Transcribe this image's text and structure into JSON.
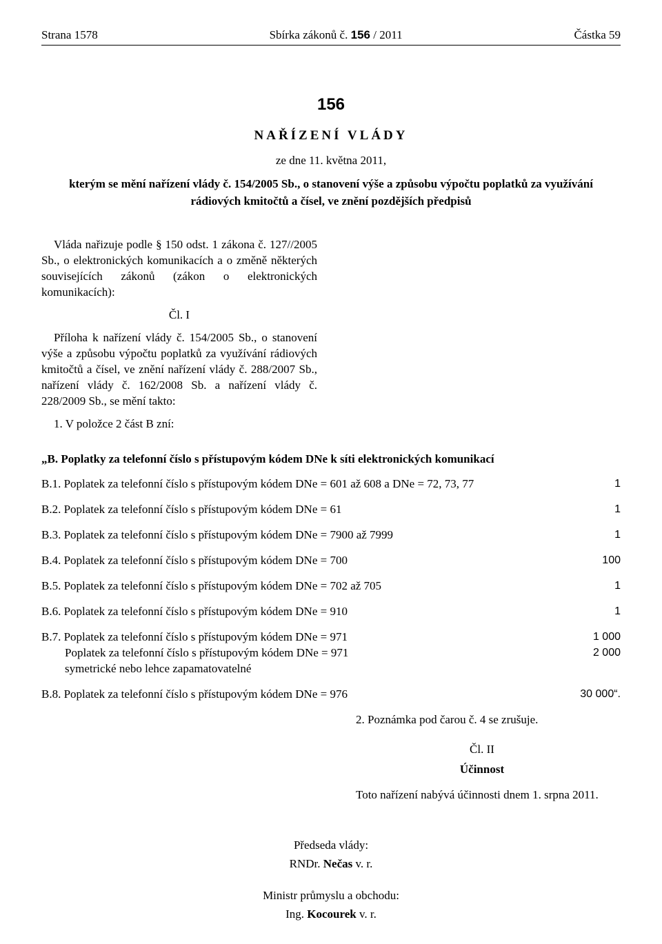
{
  "header": {
    "left_prefix": "Strana ",
    "page_num": "1578",
    "center_prefix": "Sbírka zákonů č. ",
    "law_num": "156",
    "center_suffix": " / 2011",
    "right_prefix": "Částka ",
    "part_num": "59"
  },
  "document": {
    "number": "156",
    "type": "NAŘÍZENÍ VLÁDY",
    "date": "ze dne 11. května 2011,",
    "title": "kterým se mění nařízení vlády č. 154/2005 Sb., o stanovení výše a způsobu výpočtu poplatků za využívání rádiových kmitočtů a čísel, ve znění pozdějších předpisů"
  },
  "preamble": "Vláda nařizuje podle § 150 odst. 1 zákona č. 127/​/2005 Sb., o elektronických komunikacích a o změně některých souvisejících zákonů (zákon o elektronických komunikacích):",
  "article1": {
    "heading": "Čl. I",
    "body": "Příloha k nařízení vlády č. 154/2005 Sb., o stanovení výše a způsobu výpočtu poplatků za využívání rádiových kmitočtů a čísel, ve znění nařízení vlády č. 288/2007 Sb., nařízení vlády č. 162/2008 Sb. a nařízení vlády č. 228/2009 Sb., se mění takto:",
    "point1": "1. V položce 2 část B zní:"
  },
  "sectionB": {
    "header": "„B. Poplatky za telefonní číslo s přístupovým kódem DNe k síti elektronických komunikací",
    "items": [
      {
        "label": "B.1. Poplatek za telefonní číslo s přístupovým kódem DNe = 601 až 608 a DNe = 72, 73, 77",
        "value": "1"
      },
      {
        "label": "B.2. Poplatek za telefonní číslo s přístupovým kódem DNe = 61",
        "value": "1"
      },
      {
        "label": "B.3. Poplatek za telefonní číslo s přístupovým kódem DNe = 7900 až 7999",
        "value": "1"
      },
      {
        "label": "B.4. Poplatek za telefonní číslo s přístupovým kódem DNe = 700",
        "value": "100"
      },
      {
        "label": "B.5. Poplatek za telefonní číslo s přístupovým kódem DNe = 702 až 705",
        "value": "1"
      },
      {
        "label": "B.6. Poplatek za telefonní číslo s přístupovým kódem DNe = 910",
        "value": "1"
      }
    ],
    "b7": {
      "line1_label": "B.7. Poplatek za telefonní číslo s přístupovým kódem DNe = 971",
      "line1_value": "1 000",
      "line2_label": "Poplatek za telefonní číslo s přístupovým kódem DNe = 971",
      "line2_value": "2 000",
      "line3": "symetrické nebo lehce zapamatovatelné"
    },
    "b8": {
      "label": "B.8. Poplatek za telefonní číslo s přístupovým kódem DNe = 976",
      "value": "30 000“."
    }
  },
  "note": "2. Poznámka pod čarou č. 4 se zrušuje.",
  "article2": {
    "heading": "Čl. II",
    "subheading": "Účinnost",
    "body": "Toto nařízení nabývá účinnosti dnem 1. srpna 2011."
  },
  "signatures": {
    "title1": "Předseda vlády:",
    "name1_prefix": "RNDr. ",
    "name1_bold": "Nečas",
    "name1_suffix": " v. r.",
    "title2": "Ministr průmyslu a obchodu:",
    "name2_prefix": "Ing. ",
    "name2_bold": "Kocourek",
    "name2_suffix": " v. r."
  }
}
